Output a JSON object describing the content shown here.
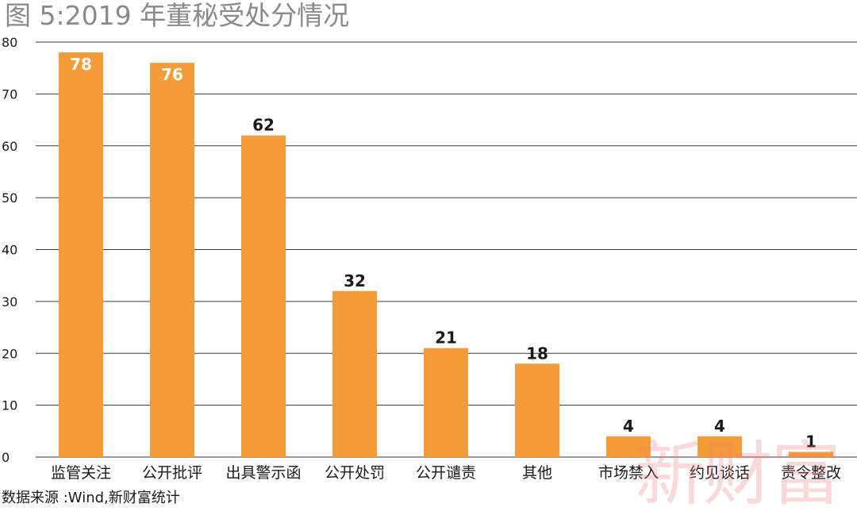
{
  "title": "图 5:2019 年董秘受处分情况",
  "source": "数据来源 :Wind,新财富统计",
  "watermark": "新财富",
  "colors": {
    "bar": "#f49b3a",
    "grid": "#3a3a3a",
    "title": "#8a8a8a",
    "label_inside": "#ffffff",
    "label_outside": "#1a1a1a",
    "watermark": "#f07878"
  },
  "chart_data": {
    "type": "bar",
    "categories": [
      "监管关注",
      "公开批评",
      "出具警示函",
      "公开处罚",
      "公开谴责",
      "其他",
      "市场禁入",
      "约见谈话",
      "责令整改"
    ],
    "values": [
      78,
      76,
      62,
      32,
      21,
      18,
      4,
      4,
      1
    ],
    "data_labels": [
      "78",
      "76",
      "62",
      "32",
      "21",
      "18",
      "4",
      "4",
      "1"
    ],
    "title": "图 5:2019 年董秘受处分情况",
    "xlabel": "",
    "ylabel": "",
    "ylim": [
      0,
      80
    ],
    "yticks": [
      0,
      10,
      20,
      30,
      40,
      50,
      60,
      70,
      80
    ],
    "ytick_labels": [
      "0",
      "10",
      "20",
      "30",
      "40",
      "50",
      "60",
      "70",
      "80"
    ],
    "grid": true,
    "legend": "none"
  }
}
